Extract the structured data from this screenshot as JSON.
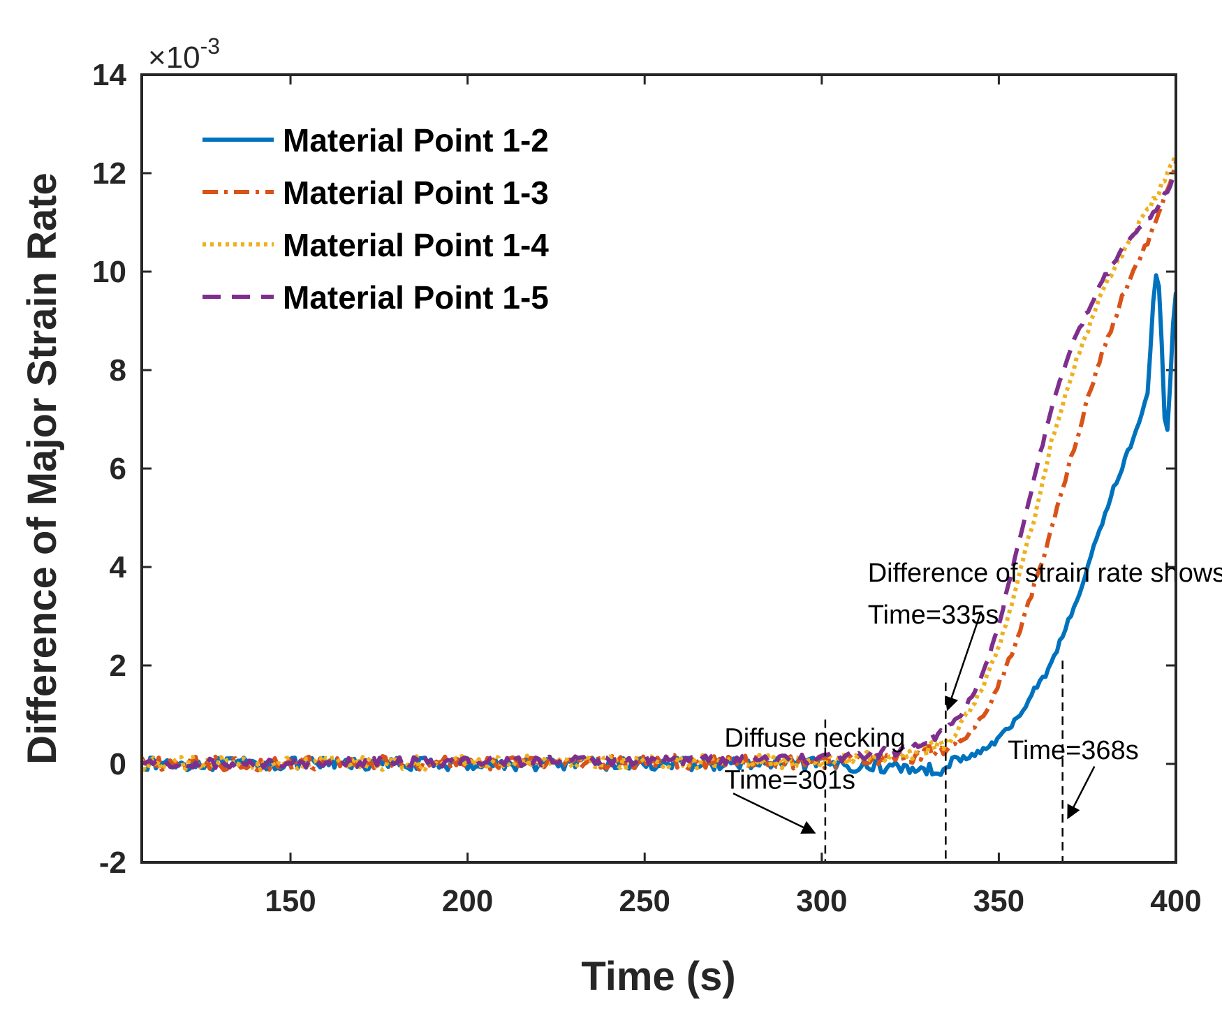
{
  "chart_data": {
    "type": "line",
    "xlabel": "Time (s)",
    "ylabel": "Difference of Major Strain Rate",
    "y_exponent": "×10",
    "y_exponent_power": "-3",
    "xlim": [
      108,
      400
    ],
    "ylim": [
      -2,
      14
    ],
    "xticks": [
      "150",
      "200",
      "250",
      "300",
      "350",
      "400"
    ],
    "xtick_values": [
      150,
      200,
      250,
      300,
      350,
      400
    ],
    "yticks": [
      "-2",
      "0",
      "2",
      "4",
      "6",
      "8",
      "10",
      "12",
      "14"
    ],
    "ytick_values": [
      -2,
      0,
      2,
      4,
      6,
      8,
      10,
      12,
      14
    ],
    "legend_position": "top-left",
    "series": [
      {
        "name": "Material Point 1-2",
        "color": "#0072BD",
        "style": "solid",
        "noise": 0.13,
        "points": [
          [
            108,
            0
          ],
          [
            300,
            0
          ],
          [
            330,
            -0.1
          ],
          [
            333,
            -0.2
          ],
          [
            335,
            0.05
          ],
          [
            340,
            0.1
          ],
          [
            345,
            0.25
          ],
          [
            350,
            0.5
          ],
          [
            355,
            0.9
          ],
          [
            360,
            1.5
          ],
          [
            363,
            1.8
          ],
          [
            365,
            2.1
          ],
          [
            368,
            2.6
          ],
          [
            372,
            3.3
          ],
          [
            376,
            4.2
          ],
          [
            380,
            5.1
          ],
          [
            384,
            5.9
          ],
          [
            388,
            6.6
          ],
          [
            392,
            7.5
          ],
          [
            394,
            9.8
          ],
          [
            395,
            10.0
          ],
          [
            396,
            8.5
          ],
          [
            397,
            6.6
          ],
          [
            398,
            7.0
          ],
          [
            399,
            8.8
          ],
          [
            400,
            9.6
          ]
        ]
      },
      {
        "name": "Material Point 1-3",
        "color": "#D95319",
        "style": "dashdot",
        "noise": 0.14,
        "points": [
          [
            108,
            0
          ],
          [
            300,
            0.05
          ],
          [
            325,
            0.15
          ],
          [
            335,
            0.3
          ],
          [
            340,
            0.5
          ],
          [
            345,
            0.9
          ],
          [
            350,
            1.6
          ],
          [
            355,
            2.5
          ],
          [
            360,
            3.6
          ],
          [
            365,
            4.8
          ],
          [
            370,
            6.1
          ],
          [
            375,
            7.4
          ],
          [
            380,
            8.5
          ],
          [
            385,
            9.5
          ],
          [
            390,
            10.3
          ],
          [
            395,
            11.1
          ],
          [
            400,
            12.2
          ]
        ]
      },
      {
        "name": "Material Point 1-4",
        "color": "#EDB120",
        "style": "dotted",
        "noise": 0.14,
        "points": [
          [
            108,
            0
          ],
          [
            300,
            0.05
          ],
          [
            325,
            0.2
          ],
          [
            335,
            0.45
          ],
          [
            340,
            0.9
          ],
          [
            345,
            1.5
          ],
          [
            350,
            2.4
          ],
          [
            355,
            3.6
          ],
          [
            360,
            5.0
          ],
          [
            365,
            6.6
          ],
          [
            370,
            7.8
          ],
          [
            375,
            8.8
          ],
          [
            380,
            9.7
          ],
          [
            385,
            10.4
          ],
          [
            390,
            11.0
          ],
          [
            395,
            11.6
          ],
          [
            400,
            12.4
          ]
        ]
      },
      {
        "name": "Material Point 1-5",
        "color": "#7E2F8E",
        "style": "dashed",
        "noise": 0.1,
        "points": [
          [
            108,
            0
          ],
          [
            300,
            0.1
          ],
          [
            320,
            0.25
          ],
          [
            330,
            0.45
          ],
          [
            335,
            0.75
          ],
          [
            340,
            1.1
          ],
          [
            345,
            1.7
          ],
          [
            350,
            2.8
          ],
          [
            355,
            4.3
          ],
          [
            360,
            5.8
          ],
          [
            365,
            7.3
          ],
          [
            370,
            8.4
          ],
          [
            375,
            9.2
          ],
          [
            380,
            9.9
          ],
          [
            385,
            10.5
          ],
          [
            390,
            10.9
          ],
          [
            395,
            11.3
          ],
          [
            400,
            12.0
          ]
        ]
      }
    ],
    "vlines": [
      301,
      335,
      368
    ],
    "annotations": [
      {
        "lines": [
          "Difference of strain rate shows",
          "Time=335s"
        ],
        "text_x": 313,
        "text_y": 3.7,
        "arrow_from": [
          345,
          3.1
        ],
        "arrow_to": [
          335.5,
          1.1
        ]
      },
      {
        "lines": [
          "Diffuse necking",
          "Time=301s"
        ],
        "text_x": 272.5,
        "text_y": 0.35,
        "arrow_from": [
          275,
          -0.6
        ],
        "arrow_to": [
          298,
          -1.4
        ]
      },
      {
        "lines": [
          "Time=368s"
        ],
        "text_x": 352.5,
        "text_y": 0.1,
        "arrow_from": [
          377,
          -0.05
        ],
        "arrow_to": [
          369.5,
          -1.1
        ]
      }
    ]
  }
}
